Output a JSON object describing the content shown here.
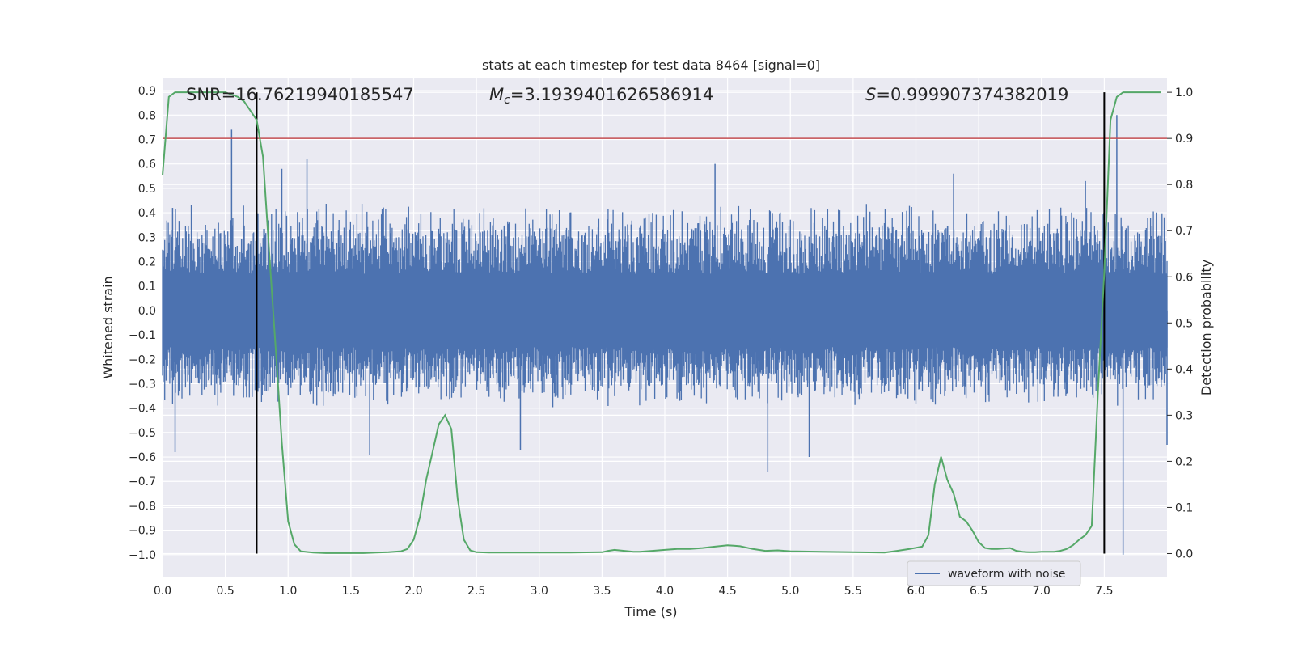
{
  "chart_data": {
    "type": "line",
    "title": "stats at each timestep for test data 8464 [signal=0]",
    "xlabel": "Time (s)",
    "ylabel_left": "Whitened strain",
    "ylabel_right": "Detection probability",
    "xlim": [
      0.0,
      8.0
    ],
    "ylim_left": [
      -1.09,
      0.95
    ],
    "ylim_right": [
      -0.05,
      1.03
    ],
    "grid": true,
    "legend_position": "lower-right",
    "x_tick_labels": [
      "0.0",
      "0.5",
      "1.0",
      "1.5",
      "2.0",
      "2.5",
      "3.0",
      "3.5",
      "4.0",
      "4.5",
      "5.0",
      "5.5",
      "6.0",
      "6.5",
      "7.0",
      "7.5"
    ],
    "y_left_tick_labels": [
      "0.9",
      "0.8",
      "0.7",
      "0.6",
      "0.5",
      "0.4",
      "0.3",
      "0.2",
      "0.1",
      "0.0",
      "−0.1",
      "−0.2",
      "−0.3",
      "−0.4",
      "−0.5",
      "−0.6",
      "−0.7",
      "−0.8",
      "−0.9",
      "−1.0"
    ],
    "y_right_tick_labels": [
      "1.0",
      "0.9",
      "0.8",
      "0.7",
      "0.6",
      "0.5",
      "0.4",
      "0.3",
      "0.2",
      "0.1",
      "0.0"
    ],
    "annotations": {
      "snr_label": "SNR=16.76219940185547",
      "mc_symbol": "M",
      "mc_subscript": "c",
      "mc_value": "=3.1939401626586914",
      "s_symbol": "S",
      "s_value": "=0.999907374382019"
    },
    "threshold": {
      "axis": "right",
      "value": 0.9,
      "color": "#c44e52"
    },
    "vertical_markers": [
      0.75,
      7.5
    ],
    "series": [
      {
        "name": "waveform with noise",
        "axis": "left",
        "color": "#4c72b0",
        "style": "dense noise trace",
        "typical_envelope": [
          -0.38,
          0.42
        ],
        "spikes": [
          {
            "x": 0.08,
            "y": 0.42
          },
          {
            "x": 0.1,
            "y": -0.58
          },
          {
            "x": 0.55,
            "y": 0.74
          },
          {
            "x": 0.75,
            "y": 0.47
          },
          {
            "x": 0.75,
            "y": -0.56
          },
          {
            "x": 0.95,
            "y": 0.58
          },
          {
            "x": 1.15,
            "y": 0.62
          },
          {
            "x": 1.65,
            "y": -0.59
          },
          {
            "x": 2.85,
            "y": -0.57
          },
          {
            "x": 4.4,
            "y": 0.6
          },
          {
            "x": 4.82,
            "y": -0.66
          },
          {
            "x": 5.15,
            "y": -0.6
          },
          {
            "x": 6.3,
            "y": 0.56
          },
          {
            "x": 7.35,
            "y": 0.53
          },
          {
            "x": 7.6,
            "y": 0.8
          },
          {
            "x": 7.65,
            "y": -1.0
          },
          {
            "x": 8.0,
            "y": -0.55
          }
        ]
      },
      {
        "name": "detection probability",
        "axis": "right",
        "color": "#55a868",
        "x": [
          0.0,
          0.05,
          0.1,
          0.15,
          0.2,
          0.3,
          0.4,
          0.5,
          0.55,
          0.6,
          0.65,
          0.7,
          0.75,
          0.8,
          0.85,
          0.9,
          0.95,
          1.0,
          1.05,
          1.1,
          1.2,
          1.3,
          1.4,
          1.5,
          1.6,
          1.7,
          1.8,
          1.9,
          1.95,
          2.0,
          2.05,
          2.1,
          2.15,
          2.2,
          2.25,
          2.3,
          2.35,
          2.4,
          2.45,
          2.5,
          2.6,
          2.75,
          3.0,
          3.25,
          3.5,
          3.55,
          3.6,
          3.75,
          3.8,
          3.9,
          4.0,
          4.1,
          4.2,
          4.3,
          4.4,
          4.5,
          4.55,
          4.6,
          4.7,
          4.8,
          4.9,
          5.0,
          5.25,
          5.5,
          5.75,
          5.85,
          5.95,
          6.05,
          6.1,
          6.15,
          6.2,
          6.25,
          6.3,
          6.35,
          6.4,
          6.45,
          6.5,
          6.55,
          6.6,
          6.65,
          6.75,
          6.8,
          6.85,
          6.9,
          6.95,
          7.0,
          7.05,
          7.1,
          7.15,
          7.2,
          7.25,
          7.3,
          7.35,
          7.4,
          7.45,
          7.5,
          7.55,
          7.6,
          7.65,
          7.7,
          7.8,
          7.9,
          7.95
        ],
        "values": [
          0.82,
          0.99,
          1.0,
          1.0,
          1.0,
          1.0,
          1.0,
          1.0,
          0.995,
          0.99,
          0.98,
          0.96,
          0.94,
          0.86,
          0.65,
          0.45,
          0.24,
          0.07,
          0.02,
          0.005,
          0.002,
          0.001,
          0.001,
          0.001,
          0.001,
          0.002,
          0.003,
          0.005,
          0.01,
          0.03,
          0.08,
          0.16,
          0.22,
          0.28,
          0.3,
          0.27,
          0.12,
          0.03,
          0.007,
          0.003,
          0.002,
          0.002,
          0.002,
          0.002,
          0.003,
          0.006,
          0.008,
          0.004,
          0.004,
          0.006,
          0.008,
          0.01,
          0.01,
          0.012,
          0.015,
          0.018,
          0.017,
          0.016,
          0.01,
          0.006,
          0.007,
          0.005,
          0.004,
          0.003,
          0.002,
          0.006,
          0.01,
          0.015,
          0.04,
          0.15,
          0.21,
          0.16,
          0.13,
          0.08,
          0.07,
          0.05,
          0.025,
          0.012,
          0.01,
          0.01,
          0.012,
          0.006,
          0.004,
          0.003,
          0.003,
          0.004,
          0.004,
          0.004,
          0.006,
          0.01,
          0.018,
          0.03,
          0.04,
          0.06,
          0.35,
          0.61,
          0.94,
          0.99,
          1.0,
          1.0,
          1.0,
          1.0,
          1.0
        ]
      }
    ]
  }
}
